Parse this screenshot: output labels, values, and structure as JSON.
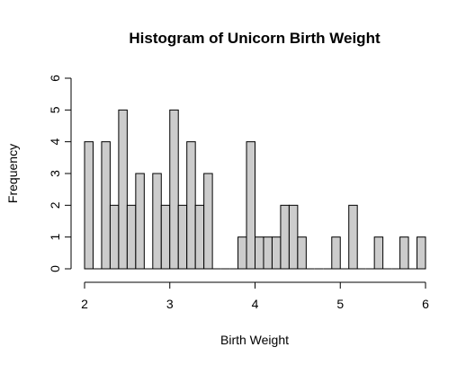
{
  "chart_data": {
    "type": "bar",
    "title": "Histogram of Unicorn Birth Weight",
    "xlabel": "Birth Weight",
    "ylabel": "Frequency",
    "xlim": [
      2,
      6
    ],
    "ylim": [
      0,
      6
    ],
    "bin_width": 0.1,
    "x_ticks": [
      "2",
      "3",
      "4",
      "5",
      "6"
    ],
    "y_ticks": [
      "0",
      "1",
      "2",
      "3",
      "4",
      "5",
      "6"
    ],
    "grid": false,
    "bins": [
      {
        "start": 2.0,
        "end": 2.1,
        "count": 4
      },
      {
        "start": 2.1,
        "end": 2.2,
        "count": 0
      },
      {
        "start": 2.2,
        "end": 2.3,
        "count": 4
      },
      {
        "start": 2.3,
        "end": 2.4,
        "count": 2
      },
      {
        "start": 2.4,
        "end": 2.5,
        "count": 5
      },
      {
        "start": 2.5,
        "end": 2.6,
        "count": 2
      },
      {
        "start": 2.6,
        "end": 2.7,
        "count": 3
      },
      {
        "start": 2.7,
        "end": 2.8,
        "count": 0
      },
      {
        "start": 2.8,
        "end": 2.9,
        "count": 3
      },
      {
        "start": 2.9,
        "end": 3.0,
        "count": 2
      },
      {
        "start": 3.0,
        "end": 3.1,
        "count": 5
      },
      {
        "start": 3.1,
        "end": 3.2,
        "count": 2
      },
      {
        "start": 3.2,
        "end": 3.3,
        "count": 4
      },
      {
        "start": 3.3,
        "end": 3.4,
        "count": 2
      },
      {
        "start": 3.4,
        "end": 3.5,
        "count": 3
      },
      {
        "start": 3.5,
        "end": 3.6,
        "count": 0
      },
      {
        "start": 3.6,
        "end": 3.7,
        "count": 0
      },
      {
        "start": 3.7,
        "end": 3.8,
        "count": 0
      },
      {
        "start": 3.8,
        "end": 3.9,
        "count": 1
      },
      {
        "start": 3.9,
        "end": 4.0,
        "count": 4
      },
      {
        "start": 4.0,
        "end": 4.1,
        "count": 1
      },
      {
        "start": 4.1,
        "end": 4.2,
        "count": 1
      },
      {
        "start": 4.2,
        "end": 4.3,
        "count": 1
      },
      {
        "start": 4.3,
        "end": 4.4,
        "count": 2
      },
      {
        "start": 4.4,
        "end": 4.5,
        "count": 2
      },
      {
        "start": 4.5,
        "end": 4.6,
        "count": 1
      },
      {
        "start": 4.6,
        "end": 4.7,
        "count": 0
      },
      {
        "start": 4.7,
        "end": 4.8,
        "count": 0
      },
      {
        "start": 4.8,
        "end": 4.9,
        "count": 0
      },
      {
        "start": 4.9,
        "end": 5.0,
        "count": 1
      },
      {
        "start": 5.0,
        "end": 5.1,
        "count": 0
      },
      {
        "start": 5.1,
        "end": 5.2,
        "count": 2
      },
      {
        "start": 5.2,
        "end": 5.3,
        "count": 0
      },
      {
        "start": 5.3,
        "end": 5.4,
        "count": 0
      },
      {
        "start": 5.4,
        "end": 5.5,
        "count": 1
      },
      {
        "start": 5.5,
        "end": 5.6,
        "count": 0
      },
      {
        "start": 5.6,
        "end": 5.7,
        "count": 0
      },
      {
        "start": 5.7,
        "end": 5.8,
        "count": 1
      },
      {
        "start": 5.8,
        "end": 5.9,
        "count": 0
      },
      {
        "start": 5.9,
        "end": 6.0,
        "count": 1
      }
    ],
    "colors": {
      "bar_fill": "#cccccc",
      "bar_stroke": "#000000"
    }
  }
}
